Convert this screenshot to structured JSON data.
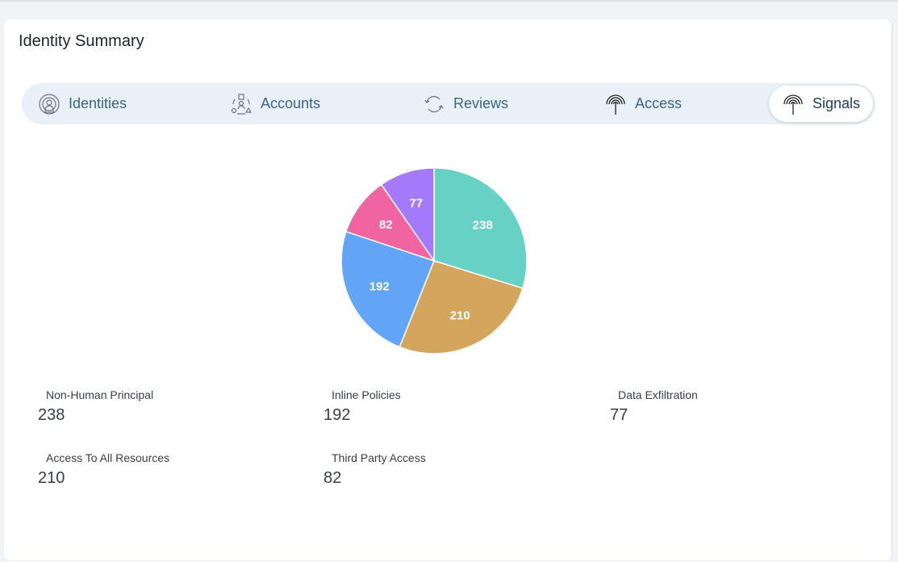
{
  "card": {
    "title": "Identity Summary"
  },
  "tabs": [
    {
      "label": "Identities",
      "icon": "identity-icon",
      "active": false
    },
    {
      "label": "Accounts",
      "icon": "accounts-icon",
      "active": false
    },
    {
      "label": "Reviews",
      "icon": "refresh-icon",
      "active": false
    },
    {
      "label": "Access",
      "icon": "signal-icon",
      "active": false
    },
    {
      "label": "Signals",
      "icon": "signal-icon",
      "active": true
    }
  ],
  "chart_data": {
    "type": "pie",
    "slices": [
      {
        "label": "Non-Human Principal",
        "value": 238,
        "color": "#66d1c4"
      },
      {
        "label": "Access To All Resources",
        "value": 210,
        "color": "#d3a55d"
      },
      {
        "label": "Inline Policies",
        "value": 192,
        "color": "#62a5f6"
      },
      {
        "label": "Third Party Access",
        "value": 82,
        "color": "#f064a1"
      },
      {
        "label": "Data Exfiltration",
        "value": 77,
        "color": "#a57afa"
      }
    ]
  },
  "legend": [
    {
      "label": "Non-Human Principal",
      "value": "238"
    },
    {
      "label": "Access To All Resources",
      "value": "210"
    },
    {
      "label": "Inline Policies",
      "value": "192"
    },
    {
      "label": "Third Party Access",
      "value": "82"
    },
    {
      "label": "Data Exfiltration",
      "value": "77"
    }
  ]
}
